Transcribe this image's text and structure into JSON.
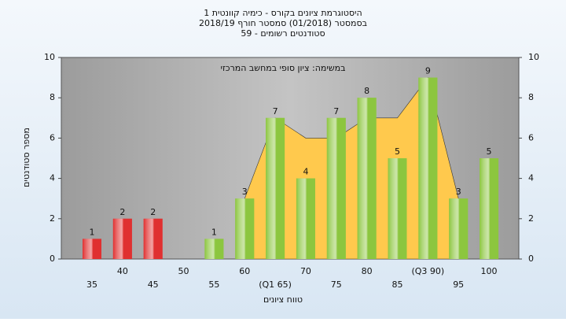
{
  "chart_data": {
    "type": "bar",
    "title": "היסטוגרמת ציונים בקורס - כימיה קוונטית 1",
    "subtitle": "בסמסטר (01/2018) סמסטר חורף 2018/19",
    "subtitle2": "סטודנטים רשומים - 59",
    "annotation": "במשימה: ציון סופי במחשב המרכזי",
    "xlabel": "טווח ציונים",
    "ylabel": "מספר סטודנטים",
    "categories": [
      "35",
      "40",
      "45",
      "50",
      "55",
      "60",
      "(Q1 65)",
      "70",
      "75",
      "80",
      "85",
      "(Q3 90)",
      "95",
      "100"
    ],
    "values": [
      1,
      2,
      2,
      null,
      1,
      3,
      7,
      4,
      7,
      8,
      5,
      9,
      3,
      5
    ],
    "colors": [
      "#e03030",
      "#e03030",
      "#e03030",
      "#e03030",
      "#8cc63f",
      "#8cc63f",
      "#8cc63f",
      "#8cc63f",
      "#8cc63f",
      "#8cc63f",
      "#8cc63f",
      "#8cc63f",
      "#8cc63f",
      "#8cc63f"
    ],
    "area": {
      "color": "#ffc94d",
      "values": [
        null,
        null,
        null,
        null,
        null,
        3,
        7,
        6,
        6,
        7,
        7,
        9,
        3,
        null
      ]
    },
    "ylim": [
      0,
      10
    ],
    "yticks": [
      0,
      2,
      4,
      6,
      8,
      10
    ],
    "y2lim": [
      0,
      10
    ],
    "y2ticks": [
      0,
      2,
      4,
      6,
      8,
      10
    ]
  }
}
